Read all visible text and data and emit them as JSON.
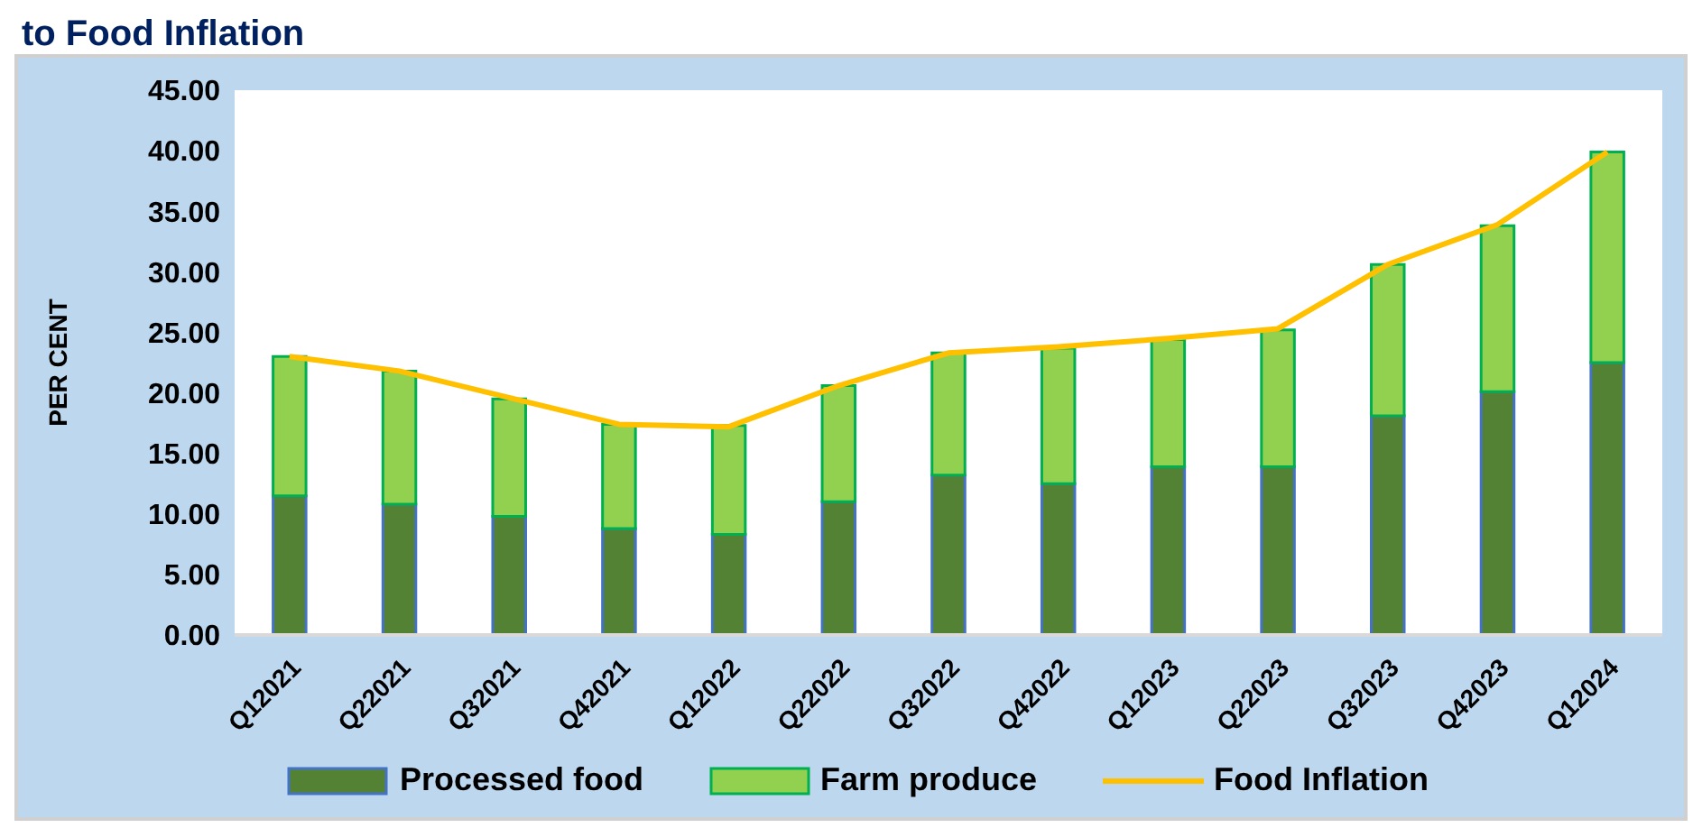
{
  "chart_data": {
    "type": "bar",
    "title": "to Food Inflation",
    "ylabel": "PER CENT",
    "stacked": true,
    "legend": "bottom",
    "grid": false,
    "categories": [
      "Q12021",
      "Q22021",
      "Q32021",
      "Q42021",
      "Q12022",
      "Q22022",
      "Q32022",
      "Q42022",
      "Q12023",
      "Q22023",
      "Q32023",
      "Q42023",
      "Q12024"
    ],
    "ylim": [
      0,
      45
    ],
    "yticks": [
      {
        "value": 0,
        "label": "0.00"
      },
      {
        "value": 5,
        "label": "5.00"
      },
      {
        "value": 10,
        "label": "10.00"
      },
      {
        "value": 15,
        "label": "15.00"
      },
      {
        "value": 20,
        "label": "20.00"
      },
      {
        "value": 25,
        "label": "25.00"
      },
      {
        "value": 30,
        "label": "30.00"
      },
      {
        "value": 35,
        "label": "35.00"
      },
      {
        "value": 40,
        "label": "40.00"
      },
      {
        "value": 45,
        "label": "45.00"
      }
    ],
    "series": [
      {
        "name": "Processed food",
        "color": "#548235",
        "values": [
          11.5,
          10.8,
          9.8,
          8.8,
          8.3,
          11.0,
          13.2,
          12.5,
          13.9,
          13.9,
          18.1,
          20.1,
          22.5
        ]
      },
      {
        "name": "Farm produce",
        "color": "#92d050",
        "values": [
          11.5,
          11.0,
          9.7,
          8.6,
          9.0,
          9.6,
          10.1,
          11.2,
          10.5,
          11.3,
          12.5,
          13.7,
          17.4
        ]
      },
      {
        "name": "Food Inflation",
        "type": "line",
        "color": "#ffc000",
        "marker": "none",
        "values": [
          23.0,
          21.8,
          19.6,
          17.4,
          17.2,
          20.6,
          23.3,
          23.8,
          24.5,
          25.3,
          30.6,
          33.9,
          39.9
        ]
      }
    ]
  }
}
